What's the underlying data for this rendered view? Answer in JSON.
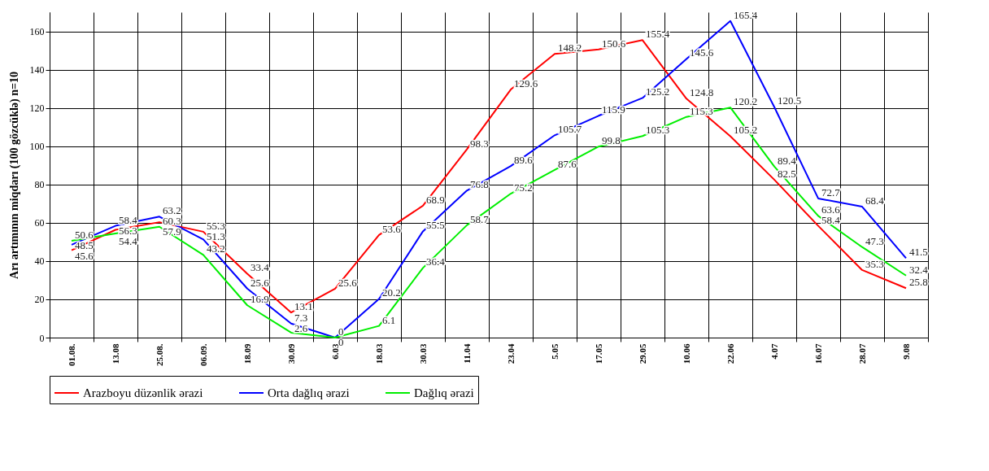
{
  "chart_data": {
    "type": "line",
    "ylabel": "Arı artımının miqdarı (100 gözcüklə) n=10",
    "categories": [
      "01.08.",
      "13.08",
      "25.08.",
      "06.09.",
      "18.09",
      "30.09",
      "6.03",
      "18.03",
      "30.03",
      "11.04",
      "23.04",
      "5.05",
      "17.05",
      "29.05",
      "10.06",
      "22.06",
      "4.07",
      "16.07",
      "28.07",
      "9.08"
    ],
    "series": [
      {
        "name": "Arazboyu düzənlik ərazi",
        "color": "#ff0000",
        "values": [
          45.6,
          56.3,
          60.3,
          55.3,
          33.4,
          13.1,
          25.6,
          53.6,
          68.9,
          98.3,
          129.6,
          148.2,
          150.6,
          155.4,
          124.8,
          105.2,
          82.5,
          58.4,
          35.3,
          25.8
        ]
      },
      {
        "name": "Orta dağlıq ərazi",
        "color": "#0000ff",
        "values": [
          48.5,
          58.4,
          63.2,
          51.3,
          25.6,
          7.3,
          0,
          20.2,
          55.5,
          76.8,
          89.6,
          105.7,
          115.9,
          125.2,
          145.6,
          165.4,
          120.5,
          72.7,
          68.4,
          41.5
        ]
      },
      {
        "name": "Dağlıq ərazi",
        "color": "#00ee00",
        "values": [
          50.6,
          54.4,
          57.9,
          43.2,
          16.9,
          2.6,
          0,
          6.1,
          36.4,
          58.7,
          75.2,
          87.6,
          99.8,
          105.3,
          115.3,
          120.2,
          89.4,
          63.6,
          47.3,
          32.4
        ]
      }
    ],
    "ylim": [
      0,
      170
    ],
    "yticks": [
      0,
      20,
      40,
      60,
      80,
      100,
      120,
      140,
      160
    ],
    "grid": true,
    "legend": "bottom",
    "data_labels": true
  }
}
